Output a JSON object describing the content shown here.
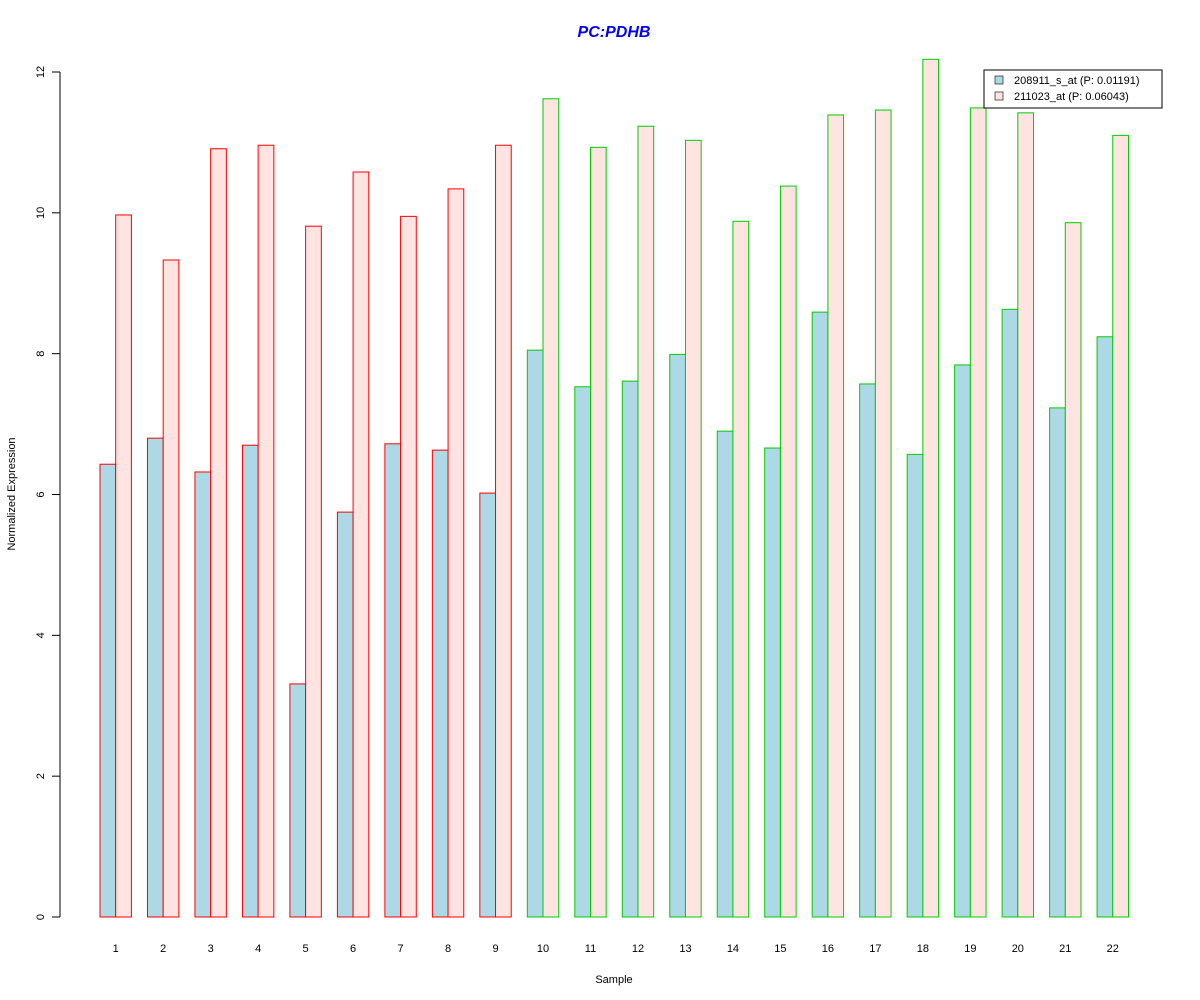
{
  "chart_data": {
    "type": "bar",
    "title": "PC:PDHB",
    "xlabel": "Sample",
    "ylabel": "Normalized Expression",
    "ylim": [
      0,
      12
    ],
    "yticks": [
      0,
      2,
      4,
      6,
      8,
      10,
      12
    ],
    "categories": [
      "1",
      "2",
      "3",
      "4",
      "5",
      "6",
      "7",
      "8",
      "9",
      "10",
      "11",
      "12",
      "13",
      "14",
      "15",
      "16",
      "17",
      "18",
      "19",
      "20",
      "21",
      "22"
    ],
    "series": [
      {
        "name": "208911_s_at (P: 0.01191)",
        "fill": "#ADD8E6",
        "values": [
          6.43,
          6.8,
          6.32,
          6.7,
          3.31,
          5.75,
          6.72,
          6.63,
          6.02,
          8.05,
          7.53,
          7.61,
          7.99,
          6.9,
          6.66,
          8.59,
          7.57,
          6.57,
          7.84,
          8.63,
          7.23,
          8.24
        ]
      },
      {
        "name": "211023_at (P: 0.06043)",
        "fill": "#FFE4E1",
        "values": [
          9.97,
          9.33,
          10.91,
          10.96,
          9.81,
          10.58,
          9.95,
          10.34,
          10.96,
          11.62,
          10.93,
          11.23,
          11.03,
          9.88,
          10.38,
          11.39,
          11.46,
          12.18,
          11.49,
          11.42,
          9.86,
          11.1
        ]
      }
    ],
    "group_border_colors": [
      "#FF0000",
      "#FF0000",
      "#FF0000",
      "#FF0000",
      "#FF0000",
      "#FF0000",
      "#FF0000",
      "#FF0000",
      "#FF0000",
      "#00CC00",
      "#00CC00",
      "#00CC00",
      "#00CC00",
      "#00CC00",
      "#00CC00",
      "#00CC00",
      "#00CC00",
      "#00CC00",
      "#00CC00",
      "#00CC00",
      "#00CC00",
      "#00CC00"
    ],
    "title_color": "#0000FF",
    "legend_position": "top-right",
    "grid": false
  }
}
